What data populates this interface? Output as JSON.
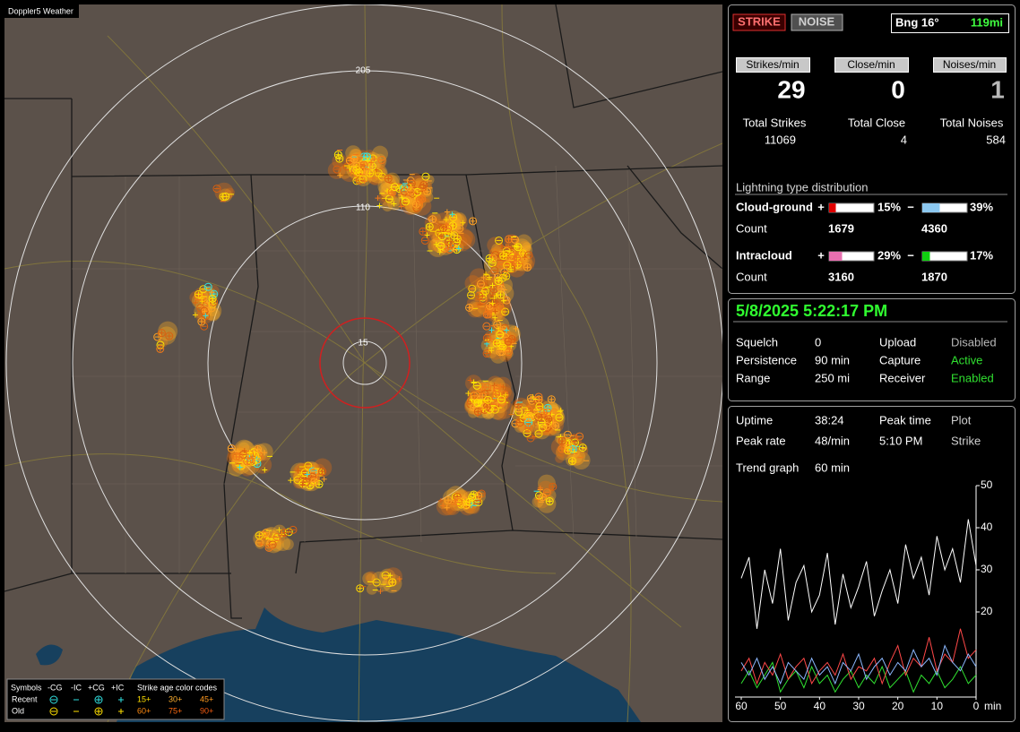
{
  "map": {
    "title": "Doppler5 Weather",
    "ring_labels": [
      "205",
      "110",
      "15"
    ]
  },
  "legend": {
    "symbols_label": "Symbols",
    "symbols": [
      "-CG",
      "-IC",
      "+CG",
      "+IC"
    ],
    "age_label": "Strike age color codes",
    "rows": [
      {
        "label": "Recent",
        "ages": [
          "15+",
          "30+",
          "45+"
        ]
      },
      {
        "label": "Old",
        "ages": [
          "60+",
          "75+",
          "90+"
        ]
      }
    ]
  },
  "header": {
    "strike_button": "STRIKE",
    "noise_button": "NOISE",
    "bearing": "Bng 16°",
    "distance": "119mi"
  },
  "rates": [
    {
      "label": "Strikes/min",
      "value": 29
    },
    {
      "label": "Close/min",
      "value": 0
    },
    {
      "label": "Noises/min",
      "value": 1
    }
  ],
  "totals": [
    {
      "label": "Total Strikes",
      "value": 11069
    },
    {
      "label": "Total Close",
      "value": 4
    },
    {
      "label": "Total Noises",
      "value": 584
    }
  ],
  "distribution": {
    "title": "Lightning type distribution",
    "count_label": "Count",
    "pos_sign": "+",
    "neg_sign": "−",
    "rows": [
      {
        "label": "Cloud-ground",
        "pos": {
          "value": 15,
          "label": "15%"
        },
        "neg": {
          "value": 39,
          "label": "39%"
        },
        "pos_count": 1679,
        "neg_count": 4360
      },
      {
        "label": "Intracloud",
        "pos": {
          "value": 29,
          "label": "29%"
        },
        "neg": {
          "value": 17,
          "label": "17%"
        },
        "pos_count": 3160,
        "neg_count": 1870
      }
    ]
  },
  "status": {
    "datetime": "5/8/2025 5:22:17 PM",
    "rows": [
      [
        "Squelch",
        "0",
        "Upload",
        "Disabled"
      ],
      [
        "Persistence",
        "90 min",
        "Capture",
        "Active"
      ],
      [
        "Range",
        "250 mi",
        "Receiver",
        "Enabled"
      ]
    ]
  },
  "stats": {
    "rows": [
      [
        "Uptime",
        "38:24",
        "Peak time",
        "Plot"
      ],
      [
        "Peak rate",
        "48/min",
        "5:10 PM",
        "Strike"
      ]
    ],
    "trend_label": "Trend graph",
    "trend_span": "60 min"
  },
  "trend_chart": {
    "xlim": [
      60,
      0
    ],
    "ylim": [
      0,
      50
    ],
    "yticks": [
      50,
      40,
      30,
      20
    ],
    "xticks": [
      60,
      50,
      40,
      30,
      20,
      10,
      0
    ],
    "x_unit": "min",
    "x": [
      60,
      58,
      56,
      54,
      52,
      50,
      48,
      46,
      44,
      42,
      40,
      38,
      36,
      34,
      32,
      30,
      28,
      26,
      24,
      22,
      20,
      18,
      16,
      14,
      12,
      10,
      8,
      6,
      4,
      2,
      0
    ],
    "series": [
      {
        "color": "#ffffff",
        "values": [
          28,
          33,
          16,
          30,
          22,
          35,
          18,
          27,
          31,
          20,
          24,
          34,
          17,
          29,
          21,
          26,
          32,
          19,
          25,
          30,
          22,
          36,
          28,
          33,
          24,
          38,
          30,
          35,
          27,
          42,
          31
        ]
      },
      {
        "color": "#8cb8ff",
        "values": [
          8,
          5,
          9,
          4,
          7,
          3,
          8,
          6,
          4,
          9,
          5,
          7,
          3,
          8,
          6,
          10,
          4,
          7,
          9,
          5,
          8,
          6,
          11,
          7,
          9,
          5,
          12,
          8,
          6,
          10,
          7
        ]
      },
      {
        "color": "#ff4848",
        "values": [
          6,
          9,
          3,
          8,
          5,
          10,
          4,
          7,
          9,
          3,
          6,
          8,
          5,
          10,
          4,
          7,
          6,
          9,
          3,
          8,
          12,
          5,
          9,
          7,
          14,
          6,
          10,
          8,
          16,
          9,
          11
        ]
      },
      {
        "color": "#30e030",
        "values": [
          3,
          6,
          2,
          5,
          8,
          1,
          4,
          6,
          2,
          7,
          3,
          5,
          1,
          4,
          6,
          2,
          5,
          3,
          7,
          2,
          4,
          6,
          1,
          5,
          3,
          6,
          2,
          4,
          7,
          3,
          5
        ]
      }
    ]
  }
}
